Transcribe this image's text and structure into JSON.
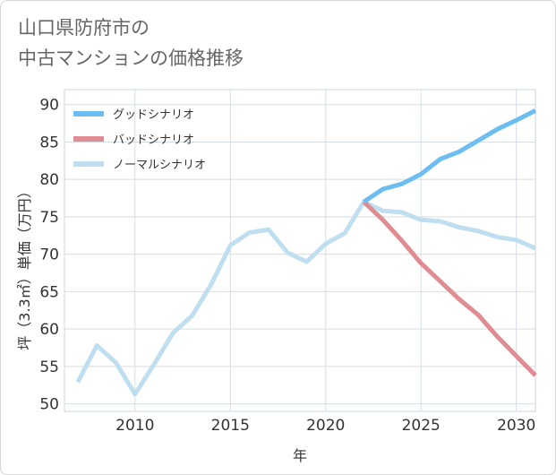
{
  "chart_data": {
    "type": "line",
    "title_lines": [
      "山口県防府市の",
      "中古マンションの価格推移"
    ],
    "xlabel": "年",
    "ylabel": "坪（3.3㎡）単価（万円）",
    "xlim": [
      2006.3,
      2031
    ],
    "ylim": [
      49,
      92
    ],
    "x_ticks": [
      2010,
      2015,
      2020,
      2025,
      2030
    ],
    "y_ticks": [
      50,
      55,
      60,
      65,
      70,
      75,
      80,
      85,
      90
    ],
    "grid": true,
    "legend_position": "top-left",
    "series": [
      {
        "name": "グッドシナリオ",
        "color": "#6bbdf2",
        "x": [
          2022,
          2023,
          2024,
          2025,
          2026,
          2027,
          2028,
          2029,
          2030,
          2031
        ],
        "y": [
          77.0,
          78.7,
          79.4,
          80.7,
          82.7,
          83.7,
          85.2,
          86.7,
          87.9,
          89.2
        ]
      },
      {
        "name": "バッドシナリオ",
        "color": "#df8c92",
        "x": [
          2022,
          2023,
          2024,
          2025,
          2026,
          2027,
          2028,
          2029,
          2030,
          2031
        ],
        "y": [
          77.0,
          74.6,
          71.8,
          68.8,
          66.4,
          64.0,
          61.9,
          59.0,
          56.4,
          53.8
        ]
      },
      {
        "name": "ノーマルシナリオ",
        "color": "#bfdff0",
        "x": [
          2007,
          2008,
          2009,
          2010,
          2011,
          2012,
          2013,
          2014,
          2015,
          2016,
          2017,
          2018,
          2019,
          2020,
          2021,
          2022,
          2023,
          2024,
          2025,
          2026,
          2027,
          2028,
          2029,
          2030,
          2031
        ],
        "y": [
          52.9,
          57.8,
          55.5,
          51.3,
          55.3,
          59.5,
          61.8,
          66.0,
          71.2,
          72.9,
          73.3,
          70.2,
          69.0,
          71.4,
          72.8,
          77.0,
          75.8,
          75.6,
          74.6,
          74.4,
          73.6,
          73.1,
          72.3,
          71.9,
          70.8
        ]
      }
    ]
  }
}
